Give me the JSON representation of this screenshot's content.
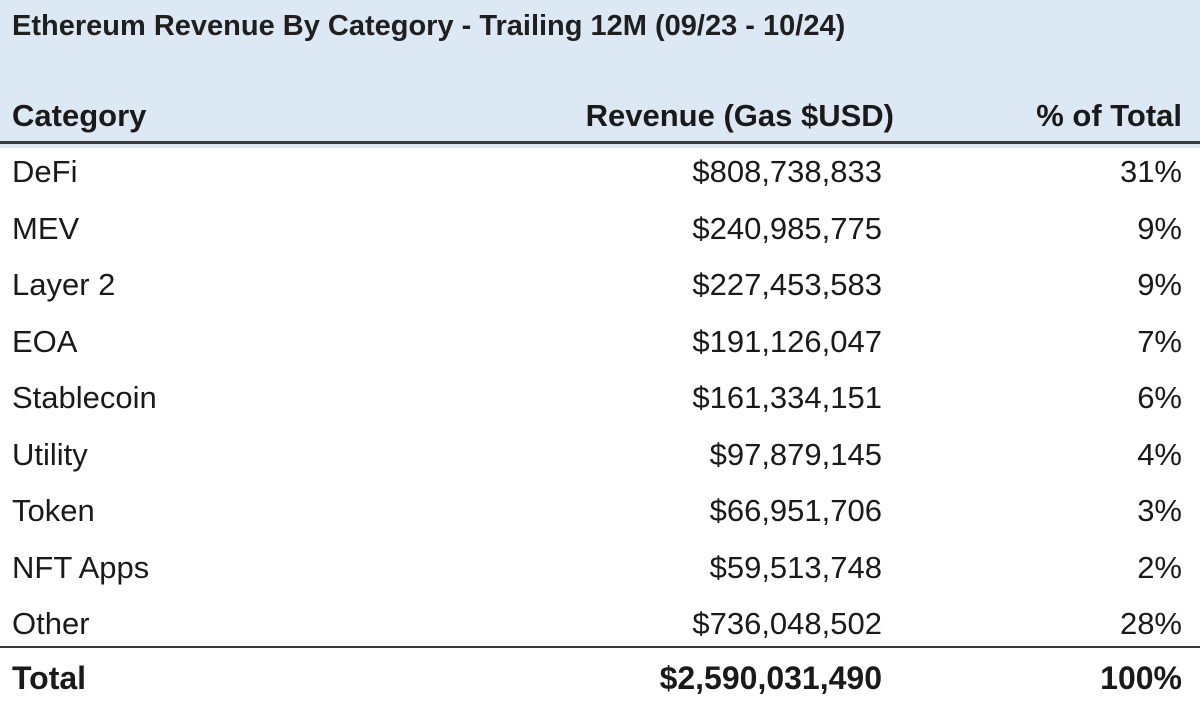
{
  "chart_data": {
    "type": "table",
    "title": "Ethereum Revenue By Category - Trailing 12M (09/23 - 10/24)",
    "columns": [
      "Category",
      "Revenue (Gas $USD)",
      "% of Total"
    ],
    "rows": [
      {
        "category": "DeFi",
        "revenue": "$808,738,833",
        "pct": "31%"
      },
      {
        "category": "MEV",
        "revenue": "$240,985,775",
        "pct": "9%"
      },
      {
        "category": "Layer 2",
        "revenue": "$227,453,583",
        "pct": "9%"
      },
      {
        "category": "EOA",
        "revenue": "$191,126,047",
        "pct": "7%"
      },
      {
        "category": "Stablecoin",
        "revenue": "$161,334,151",
        "pct": "6%"
      },
      {
        "category": "Utility",
        "revenue": "$97,879,145",
        "pct": "4%"
      },
      {
        "category": "Token",
        "revenue": "$66,951,706",
        "pct": "3%"
      },
      {
        "category": "NFT Apps",
        "revenue": "$59,513,748",
        "pct": "2%"
      },
      {
        "category": "Other",
        "revenue": "$736,048,502",
        "pct": "28%"
      }
    ],
    "total": {
      "category": "Total",
      "revenue": "$2,590,031,490",
      "pct": "100%"
    },
    "colors": {
      "header_band": "#dce8f4",
      "text": "#1a1a1a",
      "rule": "#3a3a3a"
    }
  }
}
